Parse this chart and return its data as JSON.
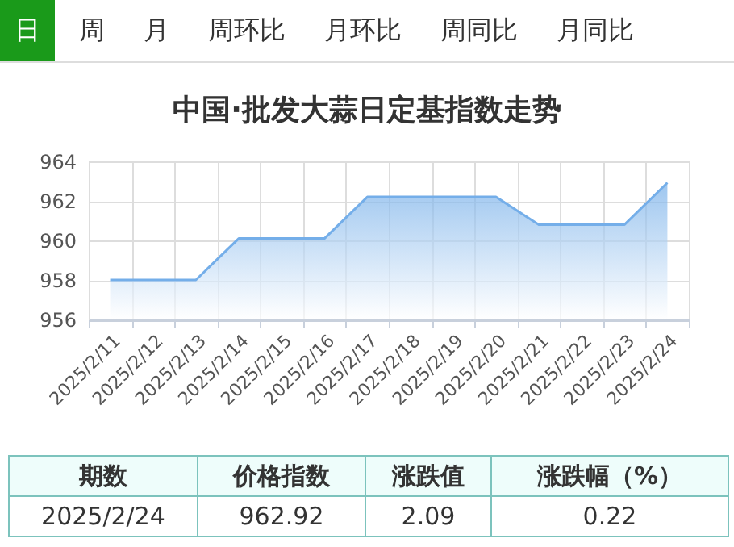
{
  "chart_data": {
    "type": "area",
    "title": "中国·批发大蒜日定基指数走势",
    "categories": [
      "2025/2/11",
      "2025/2/12",
      "2025/2/13",
      "2025/2/14",
      "2025/2/15",
      "2025/2/16",
      "2025/2/17",
      "2025/2/18",
      "2025/2/19",
      "2025/2/20",
      "2025/2/21",
      "2025/2/22",
      "2025/2/23",
      "2025/2/24"
    ],
    "series": [
      {
        "color": "#74aee9",
        "values": [
          958.0,
          958.0,
          958.0,
          960.1,
          960.1,
          960.1,
          962.2,
          962.2,
          962.2,
          962.2,
          960.8,
          960.8,
          960.8,
          962.92
        ]
      }
    ],
    "ylim": [
      956,
      964
    ],
    "yticks": [
      956,
      958,
      960,
      962,
      964
    ],
    "grid": true,
    "annotations": [
      "日",
      "周",
      "月",
      "周环比",
      "月环比",
      "周同比",
      "月同比",
      "期数",
      "价格指数",
      "涨跌值",
      "涨跌幅（%）",
      "2025/2/24",
      "962.92",
      "2.09",
      "0.22"
    ]
  }
}
